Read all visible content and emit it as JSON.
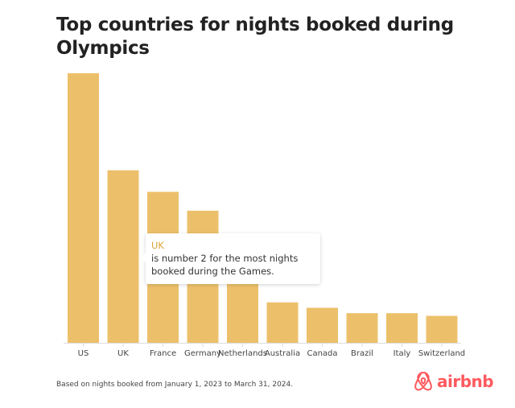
{
  "chart_data": {
    "type": "bar",
    "title": "Top countries for nights booked during Olympics",
    "xlabel": "",
    "ylabel": "",
    "categories": [
      "US",
      "UK",
      "France",
      "Germany",
      "Netherlands",
      "Australia",
      "Canada",
      "Brazil",
      "Italy",
      "Switzerland"
    ],
    "values": [
      100,
      64,
      56,
      49,
      22,
      15,
      13,
      11,
      11,
      10
    ],
    "ylim": [
      0,
      100
    ],
    "grid": false,
    "bar_color": "#ecc06b",
    "tooltip": {
      "title": "UK",
      "text": "is number 2 for the most nights booked during the Games."
    },
    "footnote": "Based on nights booked from January 1, 2023 to March 31, 2024."
  },
  "brand": {
    "name": "airbnb",
    "color": "#ff5a5f",
    "icon": "airbnb-belo-icon"
  }
}
